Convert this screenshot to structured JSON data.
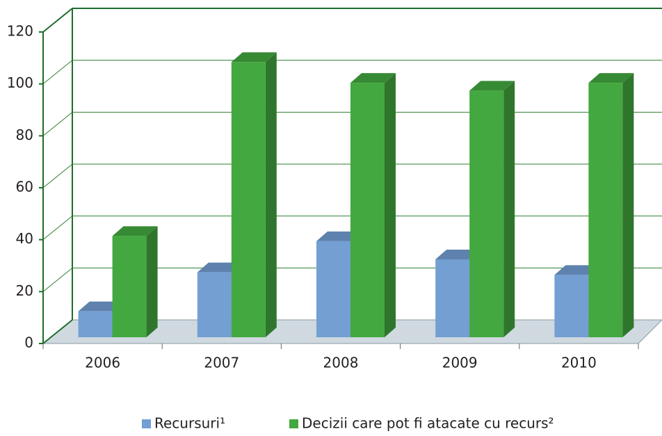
{
  "chart_data": {
    "type": "bar3d",
    "categories": [
      "2006",
      "2007",
      "2008",
      "2009",
      "2010"
    ],
    "series": [
      {
        "name": "Recursuri¹",
        "color": "#739fd3",
        "values": [
          10,
          25,
          37,
          30,
          24
        ]
      },
      {
        "name": "Decizii care pot fi atacate cu recurs²",
        "color": "#43a83f",
        "values": [
          39,
          106,
          98,
          95,
          98
        ]
      }
    ],
    "ylim": [
      0,
      120
    ],
    "yticks": [
      0,
      20,
      40,
      60,
      80,
      100,
      120
    ],
    "grid": true,
    "legend": "bottom"
  }
}
